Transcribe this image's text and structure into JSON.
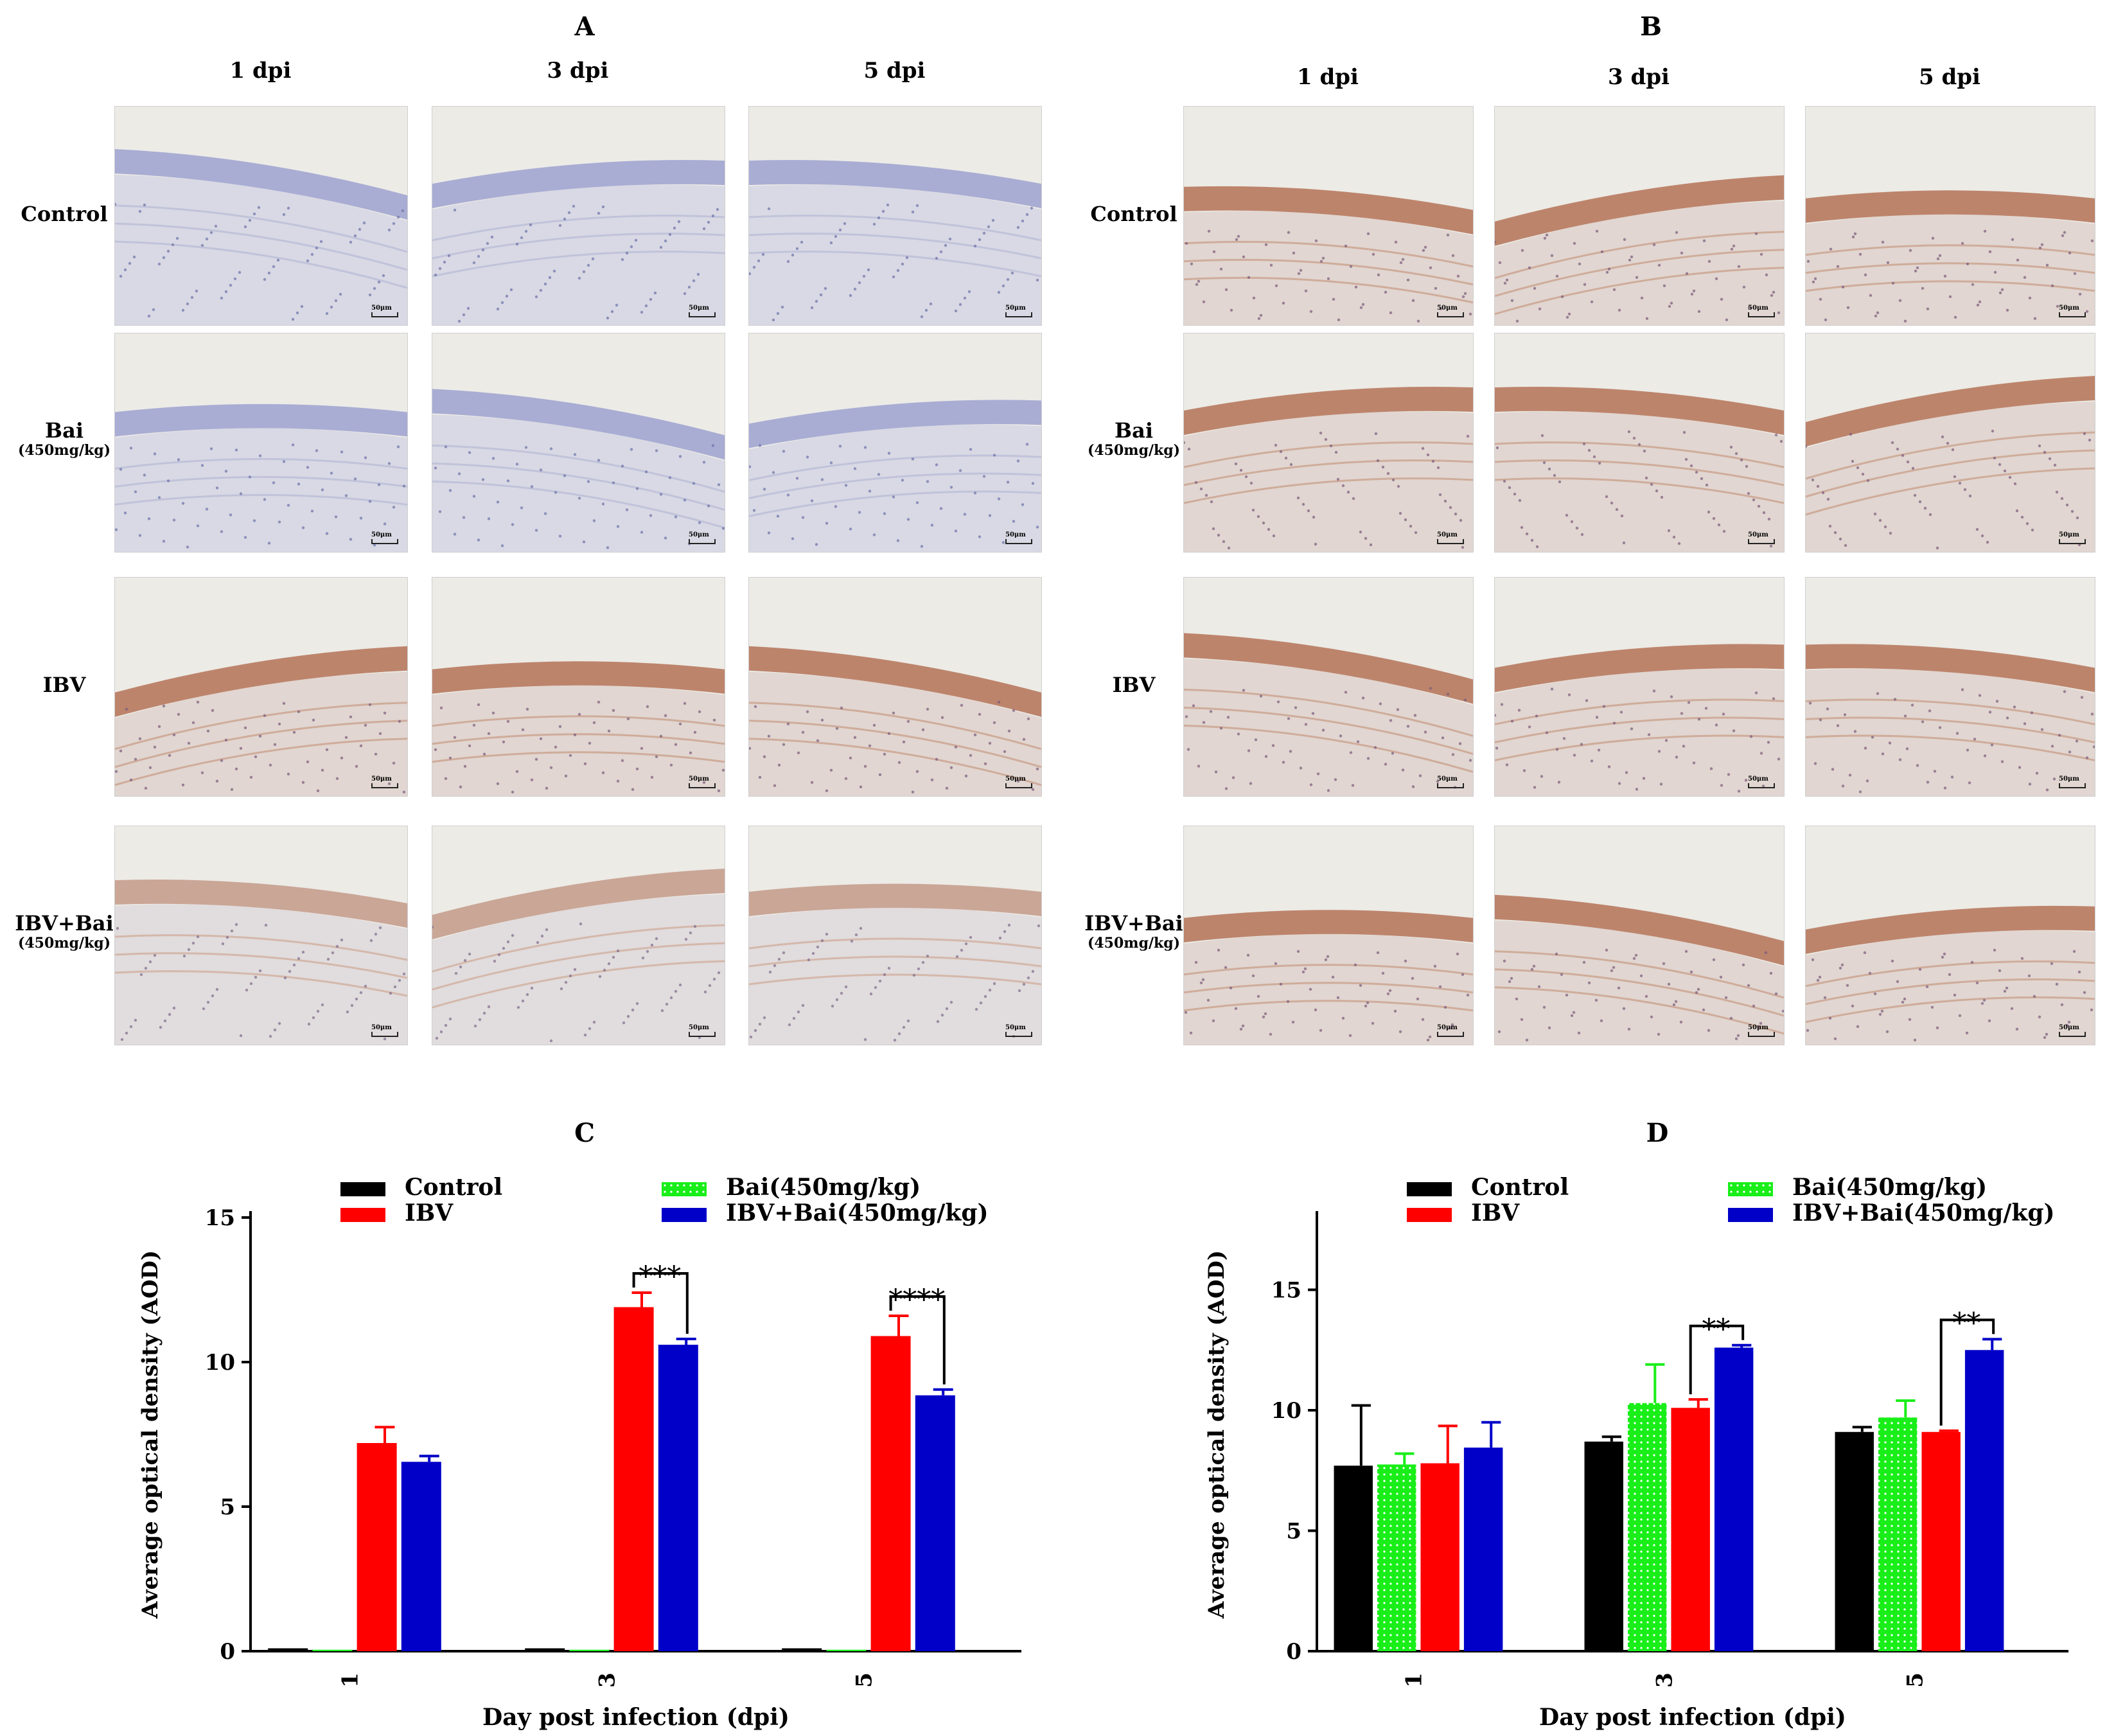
{
  "figure": {
    "panel_a": {
      "letter": "A"
    },
    "panel_b": {
      "letter": "B"
    },
    "panel_c": {
      "letter": "C"
    },
    "panel_d": {
      "letter": "D"
    },
    "columns": [
      "1 dpi",
      "3 dpi",
      "5 dpi"
    ],
    "rows": [
      {
        "name": "Control",
        "sub": ""
      },
      {
        "name": "Bai",
        "sub": "(450mg/kg)"
      },
      {
        "name": "IBV",
        "sub": ""
      },
      {
        "name": "IBV+Bai",
        "sub": "(450mg/kg)"
      }
    ],
    "scale_label": "50μm",
    "colors": {
      "control": "#000000",
      "bai": "#19ee19",
      "ibv": "#ff0000",
      "ibvbai": "#0000c8",
      "stain_blue": "#8f94c8",
      "stain_brown": "#b0705a"
    }
  },
  "chart_data": [
    {
      "type": "bar",
      "panel": "C",
      "title": "C",
      "xlabel": "Day post infection (dpi)",
      "ylabel": "Average optical density (AOD)",
      "categories": [
        "1",
        "3",
        "5"
      ],
      "ylim": [
        0,
        15
      ],
      "yticks": [
        "0",
        "5",
        "10",
        "15"
      ],
      "series": [
        {
          "name": "Control",
          "values": [
            0.1,
            0.1,
            0.1
          ],
          "errors": [
            0,
            0,
            0
          ]
        },
        {
          "name": "Bai(450mg/kg)",
          "values": [
            0.05,
            0.05,
            0.05
          ],
          "errors": [
            0,
            0,
            0
          ]
        },
        {
          "name": "IBV",
          "values": [
            7.2,
            11.9,
            10.9
          ],
          "errors": [
            0.55,
            0.5,
            0.7
          ]
        },
        {
          "name": "IBV+Bai(450mg/kg)",
          "values": [
            6.55,
            10.6,
            8.85
          ],
          "errors": [
            0.2,
            0.2,
            0.2
          ]
        }
      ],
      "annotations": [
        {
          "category": "3",
          "text": "***"
        },
        {
          "category": "5",
          "text": "****"
        }
      ]
    },
    {
      "type": "bar",
      "panel": "D",
      "title": "D",
      "xlabel": "Day post infection (dpi)",
      "ylabel": "Average optical density (AOD)",
      "categories": [
        "1",
        "3",
        "5"
      ],
      "ylim": [
        0,
        18
      ],
      "yticks": [
        "0",
        "5",
        "10",
        "15"
      ],
      "series": [
        {
          "name": "Control",
          "values": [
            7.7,
            8.7,
            9.1
          ],
          "errors": [
            2.5,
            0.2,
            0.2
          ]
        },
        {
          "name": "Bai(450mg/kg)",
          "values": [
            7.75,
            10.3,
            9.7
          ],
          "errors": [
            0.45,
            1.6,
            0.7
          ]
        },
        {
          "name": "IBV",
          "values": [
            7.8,
            10.1,
            9.1
          ],
          "errors": [
            1.55,
            0.35,
            0.05
          ]
        },
        {
          "name": "IBV+Bai(450mg/kg)",
          "values": [
            8.45,
            12.6,
            12.5
          ],
          "errors": [
            1.05,
            0.1,
            0.45
          ]
        }
      ],
      "annotations": [
        {
          "category": "3",
          "text": "**"
        },
        {
          "category": "5",
          "text": "**"
        }
      ]
    }
  ]
}
